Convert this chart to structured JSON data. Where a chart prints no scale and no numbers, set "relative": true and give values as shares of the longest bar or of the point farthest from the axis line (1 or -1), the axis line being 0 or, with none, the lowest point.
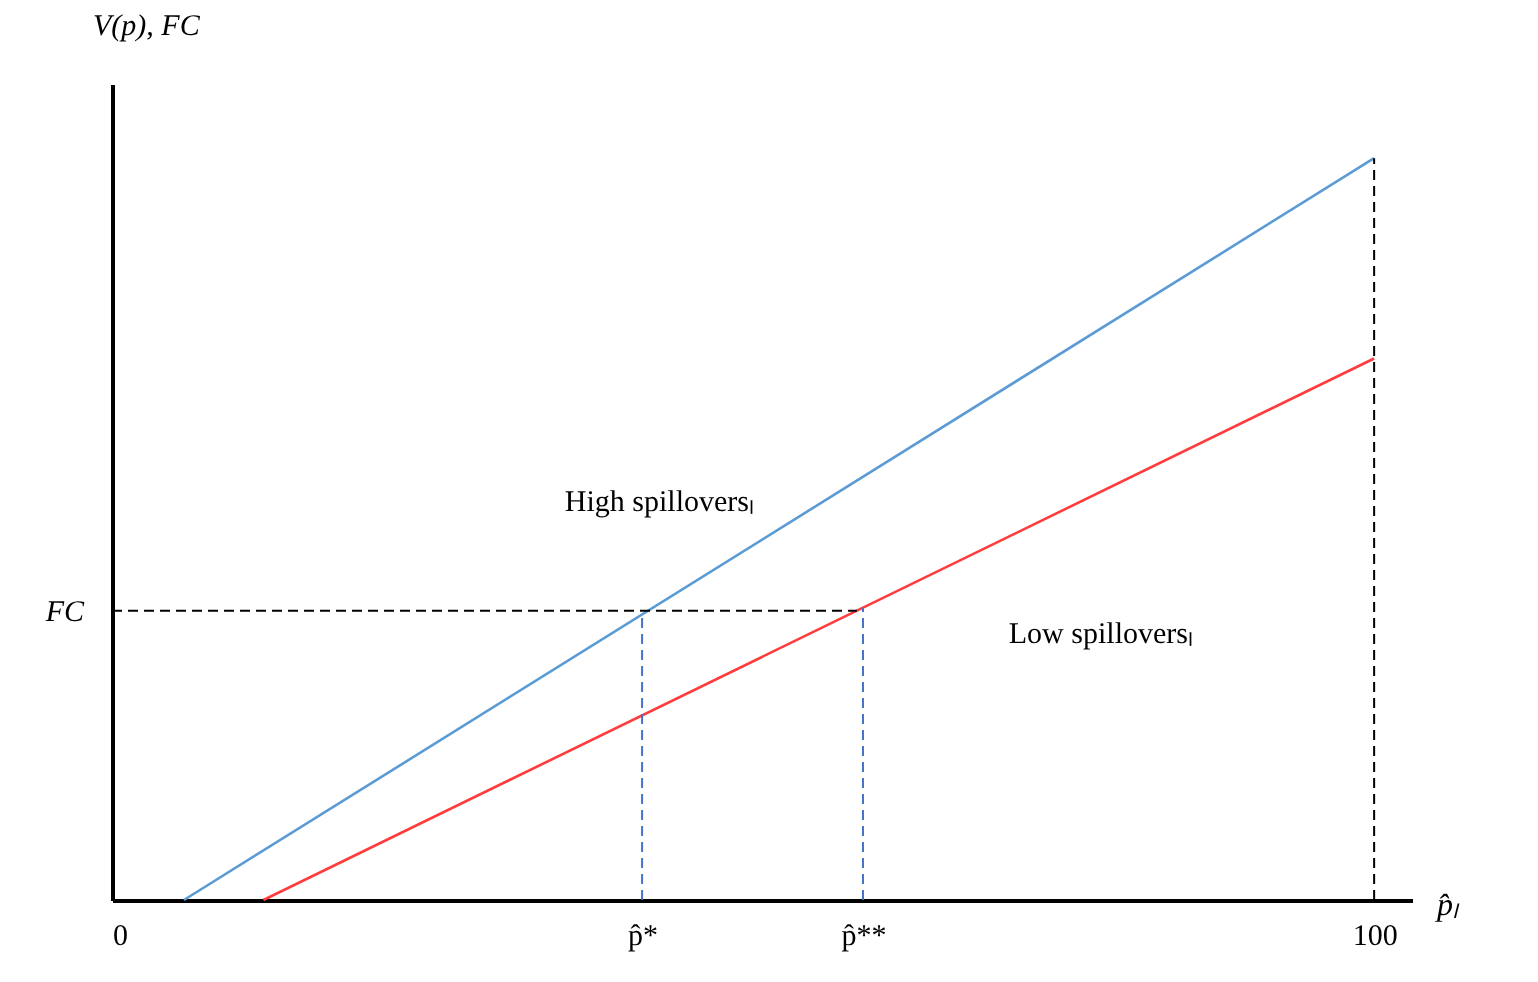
{
  "chart_data": {
    "type": "line",
    "relative": true,
    "xlabel": "p̂ₗ",
    "ylabel": "V(p), FC",
    "xlim": [
      0,
      103
    ],
    "xticks": [
      0,
      {
        "value": 42,
        "label": "p̂*"
      },
      {
        "value": 59.5,
        "label": "p̂**"
      },
      100
    ],
    "series": [
      {
        "name": "High spilloversₗ",
        "color": "#5b9bd5",
        "x": [
          5.7,
          100
        ],
        "values": [
          0,
          1
        ]
      },
      {
        "name": "Low spilloversₗ",
        "color": "#ff3b3b",
        "x": [
          12,
          100
        ],
        "values": [
          0,
          0.73
        ]
      }
    ],
    "ref_lines": [
      {
        "axis": "y",
        "value": 0.39,
        "label": "FC",
        "color": "#000000",
        "line_style": "dashed"
      },
      {
        "axis": "x",
        "value": 42,
        "color": "#4472c4",
        "line_style": "dashed"
      },
      {
        "axis": "x",
        "value": 59.5,
        "color": "#4472c4",
        "line_style": "dashed"
      },
      {
        "axis": "x",
        "value": 100,
        "color": "#000000",
        "line_style": "dashed"
      }
    ],
    "legend": false,
    "grid": false,
    "marker": "none",
    "line_style": "solid"
  }
}
